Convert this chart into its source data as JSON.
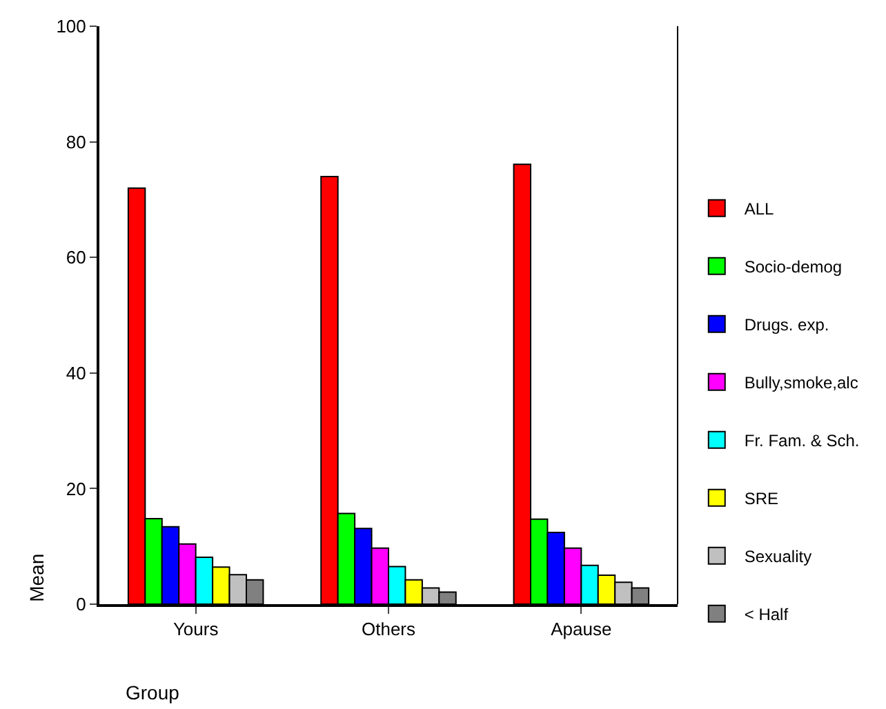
{
  "chart_data": {
    "type": "bar",
    "xlabel": "Group",
    "ylabel": "Mean",
    "categories": [
      "Yours",
      "Others",
      "Apause"
    ],
    "series": [
      {
        "name": "ALL",
        "color": "#ff0000",
        "values": [
          72.0,
          74.0,
          76.1
        ]
      },
      {
        "name": "Socio-demog",
        "color": "#00ff00",
        "values": [
          14.8,
          15.7,
          14.7
        ]
      },
      {
        "name": "Drugs. exp.",
        "color": "#0000ff",
        "values": [
          13.4,
          13.1,
          12.4
        ]
      },
      {
        "name": "Bully,smoke,alc",
        "color": "#ff00ff",
        "values": [
          10.4,
          9.7,
          9.7
        ]
      },
      {
        "name": "Fr. Fam. & Sch.",
        "color": "#00ffff",
        "values": [
          8.1,
          6.5,
          6.7
        ]
      },
      {
        "name": "SRE",
        "color": "#ffff00",
        "values": [
          6.4,
          4.2,
          5.0
        ]
      },
      {
        "name": "Sexuality",
        "color": "#c0c0c0",
        "values": [
          5.1,
          2.8,
          3.8
        ]
      },
      {
        "name": "< Half",
        "color": "#808080",
        "values": [
          4.2,
          2.1,
          2.8
        ]
      }
    ],
    "ylim": [
      0,
      100
    ],
    "yticks": [
      0,
      20,
      40,
      60,
      80,
      100
    ],
    "legend": "right"
  }
}
